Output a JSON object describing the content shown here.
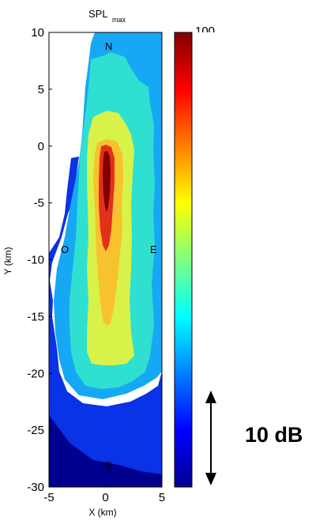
{
  "chart_data": {
    "type": "heatmap",
    "title": "SPL",
    "title_subscript": "max",
    "xlabel": "X (km)",
    "ylabel": "Y (km)",
    "xlim": [
      -5,
      5
    ],
    "ylim": [
      -30,
      10
    ],
    "x_ticks": [
      "-5",
      "0",
      "5"
    ],
    "y_ticks": [
      "10",
      "5",
      "0",
      "-5",
      "-10",
      "-15",
      "-20",
      "-25",
      "-30"
    ],
    "colormap": "jet",
    "colorbar_top_label": "100",
    "direction_labels": {
      "north": "N",
      "east": "E",
      "west": "O",
      "south": "S"
    },
    "scale_annotation": "10 dB",
    "contour_levels": [
      {
        "level": 1,
        "color": "#00008f",
        "region": "dark blue background, south / west edge"
      },
      {
        "level": 2,
        "color": "#0a32e6",
        "region": "blue, lower plume"
      },
      {
        "level": 3,
        "color": "#17a8f5",
        "region": "light blue, outer plume"
      },
      {
        "level": 4,
        "color": "#2fe0d0",
        "region": "cyan, plume"
      },
      {
        "level": 5,
        "color": "#d8f24a",
        "region": "yellow-green, core plume"
      },
      {
        "level": 6,
        "color": "#f7c22e",
        "region": "orange, inner core"
      },
      {
        "level": 7,
        "color": "#e2301c",
        "region": "red, source"
      },
      {
        "level": 8,
        "color": "#800000",
        "region": "dark red, source peak near x=0, y=-2 to -4 km"
      }
    ]
  }
}
